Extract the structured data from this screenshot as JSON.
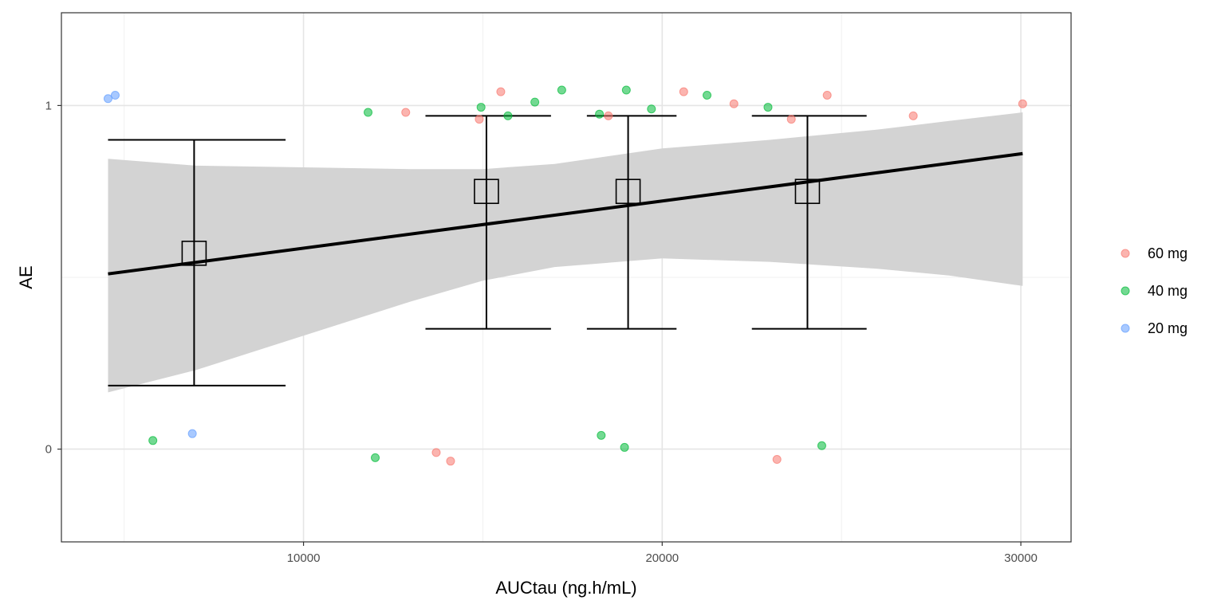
{
  "chart_data": {
    "type": "scatter",
    "title": "",
    "xlabel": "AUCtau (ng.h/mL)",
    "ylabel": "AE",
    "xlim": [
      3250,
      31400
    ],
    "ylim": [
      -0.27,
      1.27
    ],
    "x_ticks": [
      10000,
      20000,
      30000
    ],
    "x_tick_labels": [
      "10000",
      "20000",
      "30000"
    ],
    "y_ticks": [
      0,
      1
    ],
    "y_tick_labels": [
      "0",
      "1"
    ],
    "x_minor_ticks": [
      5000,
      15000,
      25000
    ],
    "y_minor_ticks": [
      0.5
    ],
    "grid": true,
    "legend_position": "right",
    "colors": {
      "60 mg": "#F8766D",
      "40 mg": "#00BA38",
      "20 mg": "#619CFF"
    },
    "series": [
      {
        "name": "60 mg",
        "points": [
          [
            12850,
            0.98
          ],
          [
            13700,
            -0.01
          ],
          [
            14100,
            -0.035
          ],
          [
            14900,
            0.96
          ],
          [
            15500,
            1.04
          ],
          [
            18500,
            0.97
          ],
          [
            20600,
            1.04
          ],
          [
            22000,
            1.005
          ],
          [
            23200,
            -0.03
          ],
          [
            23600,
            0.96
          ],
          [
            24600,
            1.03
          ],
          [
            27000,
            0.97
          ],
          [
            30050,
            1.005
          ]
        ]
      },
      {
        "name": "40 mg",
        "points": [
          [
            5800,
            0.025
          ],
          [
            11800,
            0.98
          ],
          [
            12000,
            -0.025
          ],
          [
            14950,
            0.995
          ],
          [
            15700,
            0.97
          ],
          [
            16450,
            1.01
          ],
          [
            17200,
            1.045
          ],
          [
            18250,
            0.975
          ],
          [
            18300,
            0.04
          ],
          [
            18950,
            0.005
          ],
          [
            19000,
            1.045
          ],
          [
            19700,
            0.99
          ],
          [
            21250,
            1.03
          ],
          [
            22950,
            0.995
          ],
          [
            24450,
            0.01
          ]
        ]
      },
      {
        "name": "20 mg",
        "points": [
          [
            4550,
            1.02
          ],
          [
            4750,
            1.03
          ],
          [
            6900,
            0.045
          ]
        ]
      }
    ],
    "fit_line": {
      "x": [
        4550,
        30050
      ],
      "y": [
        0.51,
        0.86
      ]
    },
    "confidence_band": {
      "x": [
        4550,
        7000,
        10000,
        13000,
        15000,
        17000,
        20000,
        23000,
        26000,
        28000,
        30050
      ],
      "lower": [
        0.165,
        0.23,
        0.33,
        0.43,
        0.49,
        0.53,
        0.555,
        0.545,
        0.525,
        0.505,
        0.475
      ],
      "upper": [
        0.845,
        0.825,
        0.82,
        0.815,
        0.815,
        0.83,
        0.875,
        0.9,
        0.93,
        0.955,
        0.98
      ]
    },
    "binned_summary": [
      {
        "x": 6950,
        "mean": 0.57,
        "lower": 0.185,
        "upper": 0.9,
        "x_min": 4550,
        "x_max": 9500
      },
      {
        "x": 15100,
        "mean": 0.75,
        "lower": 0.35,
        "upper": 0.97,
        "x_min": 13400,
        "x_max": 16900
      },
      {
        "x": 19050,
        "mean": 0.75,
        "lower": 0.35,
        "upper": 0.97,
        "x_min": 17900,
        "x_max": 20400
      },
      {
        "x": 24050,
        "mean": 0.75,
        "lower": 0.35,
        "upper": 0.97,
        "x_min": 22500,
        "x_max": 25700
      }
    ],
    "legend": [
      "60 mg",
      "40 mg",
      "20 mg"
    ]
  }
}
